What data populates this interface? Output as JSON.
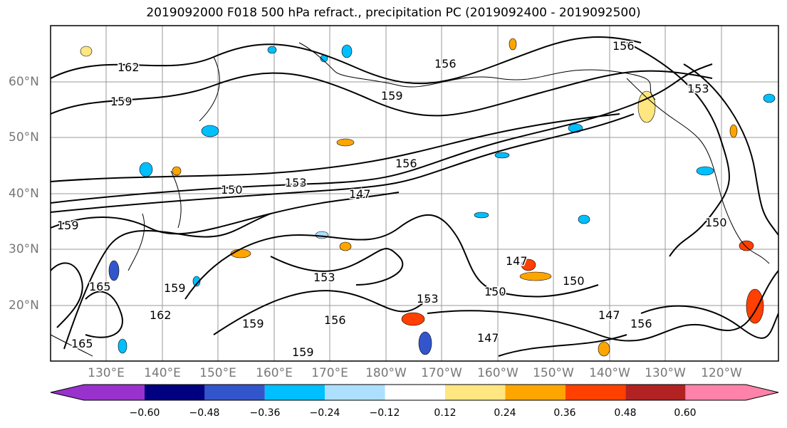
{
  "title": "2019092000 F018 500 hPa refract., precipitation PC (2019092400 - 2019092500)",
  "map": {
    "lat_labels": [
      "60°N",
      "50°N",
      "40°N",
      "30°N",
      "20°N"
    ],
    "lon_labels": [
      "130°E",
      "140°E",
      "150°E",
      "160°E",
      "170°E",
      "180°W",
      "170°W",
      "160°W",
      "150°W",
      "140°W",
      "130°W",
      "120°W"
    ],
    "contour_labels": [
      "162",
      "159",
      "156",
      "153",
      "150",
      "147",
      "165",
      "159",
      "156",
      "153",
      "150",
      "147",
      "162",
      "159",
      "156",
      "153",
      "150",
      "147",
      "159",
      "156",
      "153",
      "150",
      "147",
      "156",
      "159",
      "159",
      "165"
    ],
    "grid": true,
    "land_outline_color": "#000000"
  },
  "colorbar": {
    "colors": [
      "#9932CC",
      "#000080",
      "#3355CC",
      "#00BFFF",
      "#ADDFFF",
      "#FFFFFF",
      "#FFE680",
      "#FFA500",
      "#FF4000",
      "#B22222",
      "#FF82AB"
    ],
    "tick_labels": [
      "−0.60",
      "−0.48",
      "−0.36",
      "−0.24",
      "−0.12",
      "0.12",
      "0.24",
      "0.36",
      "0.48",
      "0.60"
    ]
  }
}
